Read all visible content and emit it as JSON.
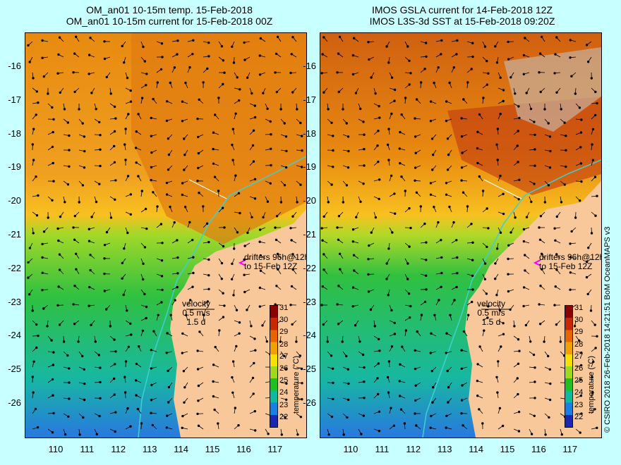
{
  "left": {
    "title_line1": "OM_an01 10-15m temp. 15-Feb-2018",
    "title_line2": "OM_an01 10-15m current for 15-Feb-2018 00Z",
    "drifters_line1": "drifters 96h@12h",
    "drifters_line2": "to 15-Feb 12Z",
    "velocity_line1": "velocity",
    "velocity_line2": "0.5 m/s",
    "velocity_line3": "1.5 d"
  },
  "right": {
    "title_line1": "IMOS GSLA current for 14-Feb-2018 12Z",
    "title_line2": "IMOS L3S-3d SST at 15-Feb-2018 09:20Z",
    "drifters_line1": "drifters 96h@12h",
    "drifters_line2": "to 15-Feb 12Z",
    "velocity_line1": "velocity",
    "velocity_line2": "0.5 m/s",
    "velocity_line3": "1.5 d"
  },
  "latitude_ticks": [
    "-16",
    "-17",
    "-18",
    "-19",
    "-20",
    "-21",
    "-22",
    "-23",
    "-24",
    "-25",
    "-26"
  ],
  "longitude_ticks": [
    "110",
    "111",
    "112",
    "113",
    "114",
    "115",
    "116",
    "117"
  ],
  "colorbar": {
    "label": "temperature (°C)",
    "ticks": [
      "31",
      "30",
      "29",
      "28",
      "27",
      "26",
      "25",
      "24",
      "23",
      "22"
    ],
    "colors": [
      "#8b0000",
      "#c82800",
      "#e86400",
      "#f0a000",
      "#f8e000",
      "#a0d820",
      "#20c020",
      "#10b8a0",
      "#1880e0",
      "#1828b0"
    ]
  },
  "credit": "© CSIRO 2018   26-Feb-2018 14:21:51 BoM OceanMAPS v3",
  "colors": {
    "land": "#f8c89a",
    "coast_current": "#40d0d0",
    "drifter_marker": "#ff00ff",
    "background": "#c8ffff"
  }
}
